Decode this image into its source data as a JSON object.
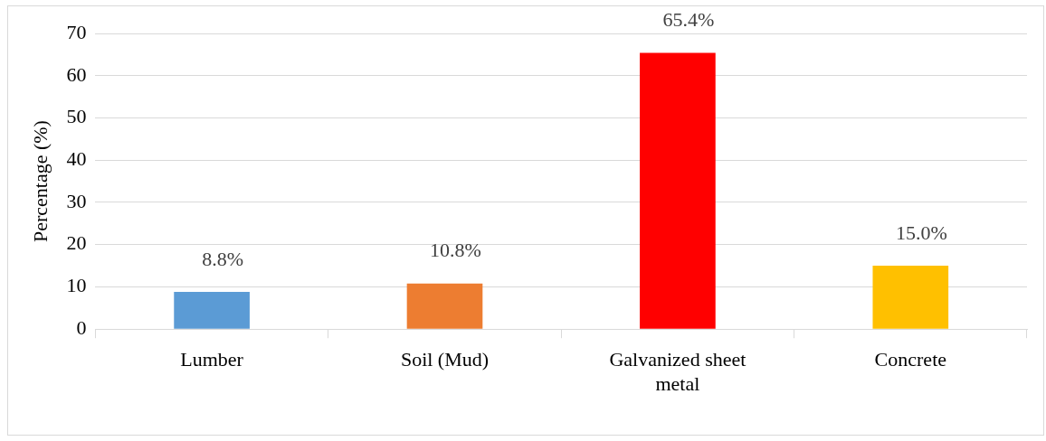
{
  "chart_data": {
    "type": "bar",
    "ylabel": "Percentage (%)",
    "categories": [
      "Lumber",
      "Soil (Mud)",
      "Galvanized sheet metal",
      "Concrete"
    ],
    "values": [
      8.8,
      10.8,
      65.4,
      15.0
    ],
    "colors": [
      "#5b9bd5",
      "#ed7d31",
      "#ff0000",
      "#ffc000"
    ],
    "value_labels": [
      "8.8%",
      "10.8%",
      "65.4%",
      "15.0%"
    ],
    "ylim": [
      0,
      70
    ],
    "yticks": [
      0,
      10,
      20,
      30,
      40,
      50,
      60,
      70
    ],
    "grid": "y",
    "legend": false
  }
}
